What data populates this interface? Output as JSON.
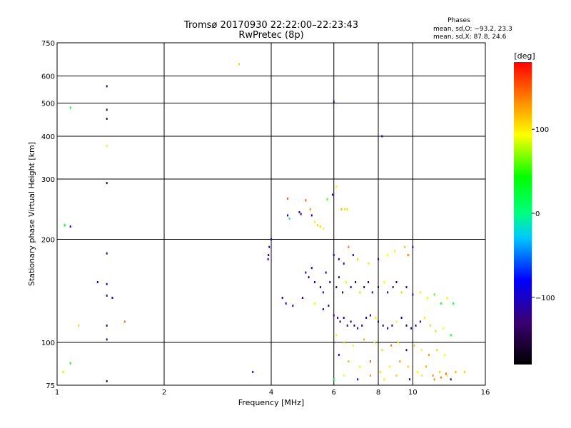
{
  "title": {
    "line1": "Tromsø 20170930 22:22:00–22:23:43",
    "line2": "RwPretec (8p)"
  },
  "phases_legend": {
    "heading": "Phases",
    "o_line": "mean, sd,O:  −93.2, 23.3",
    "x_line": "mean, sd,X:   87.8, 24.6"
  },
  "colorbar": {
    "unit_label": "[deg]",
    "ticks": [
      {
        "value": 100,
        "label": "100"
      },
      {
        "value": 0,
        "label": "0"
      },
      {
        "value": -100,
        "label": "−100"
      }
    ],
    "range": [
      -180,
      180
    ]
  },
  "chart_data": {
    "type": "scatter",
    "title": "Tromsø 20170930 22:22:00–22:23:43",
    "subtitle": "RwPretec (8p)",
    "xlabel": "Frequency [MHz]",
    "ylabel": "Stationary phase Virtual Height [km]",
    "x_scale": "log",
    "y_scale": "log",
    "xlim": [
      1,
      16
    ],
    "ylim": [
      75,
      750
    ],
    "x_ticks": [
      1,
      2,
      4,
      6,
      8,
      10,
      16
    ],
    "x_tick_labels": [
      "1",
      "2",
      "4",
      "6",
      "8",
      "10",
      "16"
    ],
    "y_ticks": [
      75,
      100,
      200,
      300,
      400,
      500,
      600,
      750
    ],
    "y_tick_labels": [
      "75",
      "100",
      "200",
      "300",
      "400",
      "500",
      "600",
      "750"
    ],
    "grid": true,
    "color_variable": "phase [deg]",
    "color_range": [
      -180,
      180
    ],
    "points": [
      [
        1.38,
        560,
        -115
      ],
      [
        1.38,
        478,
        -115
      ],
      [
        1.38,
        450,
        -120
      ],
      [
        1.38,
        292,
        -115
      ],
      [
        1.38,
        182,
        -115
      ],
      [
        1.38,
        148,
        -118
      ],
      [
        1.38,
        137,
        -115
      ],
      [
        1.38,
        112,
        -110
      ],
      [
        1.38,
        102,
        -115
      ],
      [
        1.38,
        77,
        -110
      ],
      [
        1.43,
        135,
        -112
      ],
      [
        1.3,
        150,
        -105
      ],
      [
        1.09,
        485,
        25
      ],
      [
        1.05,
        220,
        35
      ],
      [
        1.09,
        218,
        -110
      ],
      [
        1.15,
        112,
        110
      ],
      [
        1.55,
        115,
        140
      ],
      [
        1.38,
        375,
        100
      ],
      [
        1.09,
        87,
        30
      ],
      [
        1.04,
        82,
        80
      ],
      [
        3.25,
        650,
        110
      ],
      [
        3.55,
        82,
        -115
      ],
      [
        4.0,
        200,
        -110
      ],
      [
        3.95,
        190,
        -112
      ],
      [
        3.93,
        180,
        -118
      ],
      [
        3.92,
        175,
        -108
      ],
      [
        4.45,
        263,
        150
      ],
      [
        4.45,
        235,
        -110
      ],
      [
        4.5,
        230,
        -5
      ],
      [
        4.8,
        240,
        -115
      ],
      [
        4.85,
        237,
        -118
      ],
      [
        5.0,
        260,
        150
      ],
      [
        5.15,
        245,
        130
      ],
      [
        5.2,
        235,
        -110
      ],
      [
        5.3,
        225,
        100
      ],
      [
        5.4,
        220,
        110
      ],
      [
        5.5,
        218,
        105
      ],
      [
        5.6,
        215,
        95
      ],
      [
        5.75,
        262,
        60
      ],
      [
        5.95,
        270,
        -110
      ],
      [
        6.1,
        285,
        100
      ],
      [
        6.3,
        245,
        120
      ],
      [
        6.45,
        245,
        110
      ],
      [
        6.55,
        245,
        105
      ],
      [
        6.0,
        505,
        -110
      ],
      [
        8.2,
        400,
        -110
      ],
      [
        6.0,
        180,
        -110
      ],
      [
        6.2,
        175,
        -120
      ],
      [
        6.4,
        170,
        -115
      ],
      [
        6.6,
        190,
        140
      ],
      [
        6.8,
        180,
        -110
      ],
      [
        7.0,
        175,
        110
      ],
      [
        7.5,
        170,
        100
      ],
      [
        8.0,
        175,
        -110
      ],
      [
        8.5,
        180,
        95
      ],
      [
        8.9,
        185,
        100
      ],
      [
        9.5,
        190,
        120
      ],
      [
        10.0,
        190,
        -110
      ],
      [
        9.7,
        180,
        140
      ],
      [
        5.0,
        160,
        -115
      ],
      [
        5.1,
        155,
        -110
      ],
      [
        5.2,
        165,
        -120
      ],
      [
        5.3,
        150,
        -115
      ],
      [
        5.5,
        145,
        -112
      ],
      [
        5.6,
        140,
        -105
      ],
      [
        5.7,
        160,
        -118
      ],
      [
        5.85,
        150,
        -108
      ],
      [
        6.1,
        145,
        -115
      ],
      [
        6.2,
        155,
        -120
      ],
      [
        6.35,
        140,
        -110
      ],
      [
        6.5,
        150,
        100
      ],
      [
        6.7,
        145,
        -115
      ],
      [
        6.9,
        150,
        -110
      ],
      [
        7.1,
        140,
        80
      ],
      [
        7.3,
        145,
        -115
      ],
      [
        7.5,
        150,
        -118
      ],
      [
        7.7,
        140,
        -112
      ],
      [
        8.0,
        145,
        -110
      ],
      [
        8.3,
        150,
        95
      ],
      [
        8.5,
        140,
        -115
      ],
      [
        8.8,
        145,
        -108
      ],
      [
        9.0,
        150,
        -120
      ],
      [
        9.3,
        140,
        110
      ],
      [
        9.6,
        145,
        -112
      ],
      [
        10.0,
        138,
        -110
      ],
      [
        10.5,
        140,
        100
      ],
      [
        11.0,
        135,
        90
      ],
      [
        11.5,
        138,
        60
      ],
      [
        12.0,
        130,
        40
      ],
      [
        12.5,
        135,
        100
      ],
      [
        13.0,
        130,
        20
      ],
      [
        4.3,
        135,
        -115
      ],
      [
        4.4,
        130,
        -110
      ],
      [
        4.6,
        128,
        -112
      ],
      [
        4.9,
        135,
        -118
      ],
      [
        5.3,
        130,
        90
      ],
      [
        5.6,
        125,
        -115
      ],
      [
        5.8,
        128,
        -110
      ],
      [
        6.0,
        120,
        -115
      ],
      [
        6.15,
        118,
        -118
      ],
      [
        6.25,
        115,
        -110
      ],
      [
        6.4,
        118,
        -112
      ],
      [
        6.55,
        112,
        -115
      ],
      [
        6.7,
        115,
        -118
      ],
      [
        6.85,
        112,
        -110
      ],
      [
        7.0,
        110,
        -115
      ],
      [
        7.2,
        112,
        -112
      ],
      [
        7.4,
        118,
        -110
      ],
      [
        7.6,
        120,
        -115
      ],
      [
        7.85,
        118,
        100
      ],
      [
        8.0,
        115,
        -110
      ],
      [
        8.25,
        112,
        -115
      ],
      [
        8.5,
        110,
        -112
      ],
      [
        8.75,
        112,
        -118
      ],
      [
        9.0,
        115,
        90
      ],
      [
        9.3,
        118,
        -110
      ],
      [
        9.6,
        112,
        -115
      ],
      [
        9.9,
        110,
        -110
      ],
      [
        10.2,
        112,
        -118
      ],
      [
        10.5,
        115,
        -112
      ],
      [
        10.8,
        118,
        100
      ],
      [
        11.2,
        112,
        110
      ],
      [
        11.6,
        108,
        80
      ],
      [
        12.2,
        110,
        95
      ],
      [
        12.8,
        105,
        40
      ],
      [
        6.1,
        105,
        100
      ],
      [
        6.4,
        100,
        110
      ],
      [
        6.8,
        98,
        90
      ],
      [
        7.3,
        102,
        120
      ],
      [
        7.8,
        100,
        100
      ],
      [
        8.2,
        95,
        110
      ],
      [
        8.7,
        98,
        140
      ],
      [
        9.1,
        100,
        100
      ],
      [
        9.6,
        95,
        -110
      ],
      [
        10.1,
        98,
        110
      ],
      [
        10.6,
        95,
        100
      ],
      [
        11.1,
        92,
        130
      ],
      [
        11.7,
        95,
        110
      ],
      [
        12.3,
        92,
        90
      ],
      [
        6.2,
        92,
        -110
      ],
      [
        6.6,
        88,
        120
      ],
      [
        7.1,
        85,
        100
      ],
      [
        7.6,
        88,
        150
      ],
      [
        8.1,
        82,
        110
      ],
      [
        8.6,
        85,
        100
      ],
      [
        9.2,
        88,
        130
      ],
      [
        9.7,
        85,
        110
      ],
      [
        10.3,
        82,
        100
      ],
      [
        10.9,
        85,
        120
      ],
      [
        11.4,
        80,
        130
      ],
      [
        11.9,
        82,
        110
      ],
      [
        12.5,
        80,
        100
      ],
      [
        13.2,
        82,
        120
      ],
      [
        14.0,
        82,
        110
      ],
      [
        6.0,
        78,
        30
      ],
      [
        6.4,
        80,
        90
      ],
      [
        7.0,
        78,
        -110
      ],
      [
        7.6,
        80,
        130
      ],
      [
        8.3,
        78,
        100
      ],
      [
        9.0,
        80,
        110
      ],
      [
        9.8,
        78,
        -110
      ],
      [
        10.6,
        80,
        100
      ],
      [
        11.5,
        78,
        130
      ],
      [
        12.0,
        79,
        140
      ],
      [
        12.4,
        81,
        150
      ],
      [
        12.8,
        78,
        -110
      ]
    ]
  }
}
